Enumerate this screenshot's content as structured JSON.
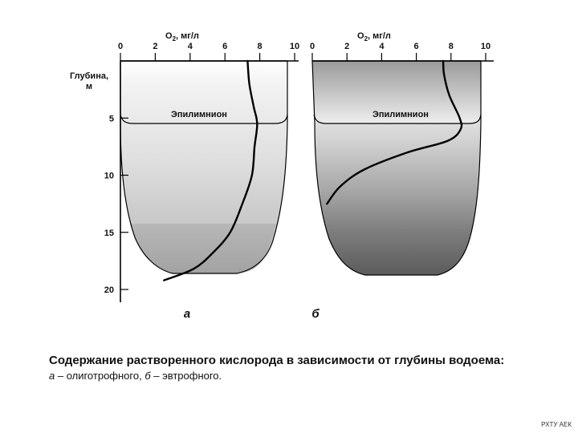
{
  "panel_a": {
    "axis_label_prefix": "O",
    "axis_label_sub": "2",
    "axis_label_suffix": ", мг/л",
    "ticks": [
      "0",
      "2",
      "4",
      "6",
      "8",
      "10"
    ],
    "layer_label": "Эпилимнион",
    "letter": "а"
  },
  "panel_b": {
    "axis_label_prefix": "O",
    "axis_label_sub": "2",
    "axis_label_suffix": ", мг/л",
    "ticks": [
      "0",
      "2",
      "4",
      "6",
      "8",
      "10"
    ],
    "layer_label": "Эпилимнион",
    "letter": "б"
  },
  "depth_axis": {
    "label_line1": "Глубина,",
    "label_line2": "м",
    "ticks": [
      "5",
      "10",
      "15",
      "20"
    ]
  },
  "caption": {
    "title": "Содержание растворенного кислорода в зависимости от глубины водоема:",
    "a_letter": "а",
    "a_text": " – олиготрофного, ",
    "b_letter": "б",
    "b_text": " – эвтрофного."
  },
  "watermark": "РХТУ АЕК",
  "chart_data": [
    {
      "type": "line",
      "panel": "а",
      "xlabel": "O2, мг/л",
      "ylabel": "Глубина, м",
      "xlim": [
        0,
        10
      ],
      "ylim": [
        0,
        20
      ],
      "x_ticks": [
        0,
        2,
        4,
        6,
        8,
        10
      ],
      "y_ticks": [
        5,
        10,
        15,
        20
      ],
      "series": [
        {
          "x": [
            7.3,
            7.4,
            7.65,
            7.85,
            7.7,
            7.55,
            7.0,
            6.3,
            5.3,
            4.2,
            2.5
          ],
          "y": [
            0,
            2,
            4,
            5.5,
            7.5,
            10,
            12.5,
            15,
            16.8,
            18.2,
            19.2
          ]
        }
      ]
    },
    {
      "type": "line",
      "panel": "б",
      "xlabel": "O2, мг/л",
      "ylabel": "Глубина, м",
      "xlim": [
        0,
        10
      ],
      "ylim": [
        0,
        20
      ],
      "x_ticks": [
        0,
        2,
        4,
        6,
        8,
        10
      ],
      "y_ticks": [
        5,
        10,
        15,
        20
      ],
      "series": [
        {
          "x": [
            7.55,
            7.6,
            7.9,
            8.5,
            8.55,
            7.8,
            5.5,
            3.0,
            1.6,
            0.85
          ],
          "y": [
            0,
            1.2,
            3,
            5,
            6,
            7,
            8,
            9.5,
            11,
            12.5
          ]
        }
      ]
    }
  ]
}
